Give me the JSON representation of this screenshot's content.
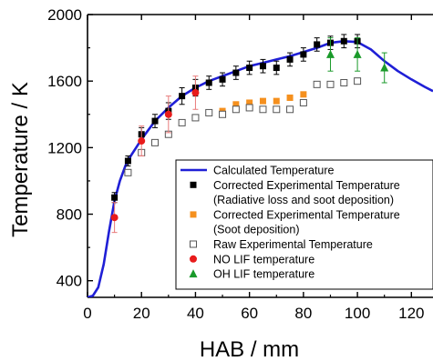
{
  "chart_data": {
    "type": "scatter",
    "xlabel": "HAB / mm",
    "ylabel": "Temperature / K",
    "xlim": [
      0,
      128
    ],
    "ylim": [
      300,
      2000
    ],
    "x_ticks": [
      0,
      20,
      40,
      60,
      80,
      100,
      120
    ],
    "y_ticks": [
      400,
      800,
      1200,
      1600,
      2000
    ],
    "legend_position": "lower-right",
    "series": [
      {
        "name": "Calculated Temperature",
        "kind": "line",
        "color": "#1f1fd6",
        "x": [
          0,
          2,
          4,
          6,
          8,
          10,
          12,
          14,
          16,
          18,
          20,
          25,
          30,
          35,
          40,
          45,
          50,
          55,
          60,
          65,
          70,
          75,
          80,
          85,
          90,
          95,
          100,
          105,
          110,
          115,
          120,
          125,
          128
        ],
        "y": [
          300,
          310,
          360,
          500,
          700,
          880,
          1000,
          1090,
          1150,
          1200,
          1250,
          1360,
          1440,
          1510,
          1560,
          1600,
          1630,
          1660,
          1690,
          1710,
          1730,
          1750,
          1775,
          1800,
          1830,
          1840,
          1835,
          1790,
          1720,
          1660,
          1610,
          1565,
          1540
        ]
      },
      {
        "name": "Corrected Experimental Temperature (Radiative loss and soot deposition)",
        "kind": "marker",
        "marker": "filled-square",
        "color": "#000000",
        "error_color": "#000000",
        "x": [
          10,
          15,
          20,
          25,
          30,
          35,
          40,
          45,
          50,
          55,
          60,
          65,
          70,
          75,
          80,
          85,
          90,
          95,
          100
        ],
        "y": [
          900,
          1120,
          1280,
          1360,
          1420,
          1510,
          1560,
          1590,
          1610,
          1650,
          1680,
          1690,
          1680,
          1730,
          1760,
          1820,
          1830,
          1840,
          1840
        ],
        "err": [
          30,
          30,
          40,
          40,
          50,
          50,
          50,
          40,
          40,
          40,
          40,
          40,
          40,
          40,
          40,
          40,
          40,
          40,
          40
        ]
      },
      {
        "name": "Corrected Experimental Temperature (Soot deposition)",
        "kind": "marker",
        "marker": "filled-square",
        "color": "#f5901e",
        "x": [
          50,
          55,
          60,
          65,
          70,
          75,
          80
        ],
        "y": [
          1420,
          1460,
          1470,
          1480,
          1480,
          1500,
          1520
        ]
      },
      {
        "name": "Raw Experimental Temperature",
        "kind": "marker",
        "marker": "open-square",
        "color": "#555555",
        "x": [
          15,
          20,
          25,
          30,
          35,
          40,
          45,
          50,
          55,
          60,
          65,
          70,
          75,
          80,
          85,
          90,
          95,
          100
        ],
        "y": [
          1050,
          1170,
          1230,
          1280,
          1350,
          1380,
          1410,
          1400,
          1430,
          1440,
          1430,
          1430,
          1430,
          1470,
          1580,
          1580,
          1590,
          1600
        ]
      },
      {
        "name": "NO LIF temperature",
        "kind": "marker",
        "marker": "filled-circle",
        "color": "#e81b1b",
        "error_color": "#e87a7a",
        "x": [
          10,
          20,
          30,
          40
        ],
        "y": [
          780,
          1240,
          1400,
          1530
        ],
        "err": [
          90,
          90,
          110,
          100
        ]
      },
      {
        "name": "OH LIF temperature",
        "kind": "marker",
        "marker": "filled-triangle",
        "color": "#1a9a2a",
        "error_color": "#1a9a2a",
        "x": [
          90,
          100,
          110
        ],
        "y": [
          1760,
          1760,
          1680
        ],
        "err": [
          100,
          100,
          90
        ]
      }
    ],
    "legend": [
      {
        "lines": [
          "Calculated Temperature"
        ]
      },
      {
        "lines": [
          "Corrected Experimental Temperature",
          "(Radiative loss and soot deposition)"
        ]
      },
      {
        "lines": [
          "Corrected Experimental Temperature",
          "(Soot deposition)"
        ]
      },
      {
        "lines": [
          "Raw Experimental Temperature"
        ]
      },
      {
        "lines": [
          "NO LIF temperature"
        ]
      },
      {
        "lines": [
          "OH LIF temperature"
        ]
      }
    ]
  }
}
